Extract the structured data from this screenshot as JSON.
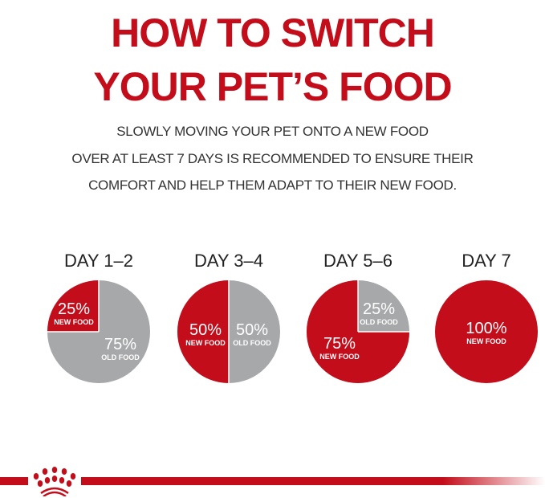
{
  "title": {
    "line1": "HOW TO SWITCH",
    "line2": "YOUR PET’S FOOD"
  },
  "subtitle": {
    "line1": "SLOWLY MOVING YOUR PET ONTO A NEW FOOD",
    "line2": "OVER AT LEAST 7 DAYS IS RECOMMENDED TO ENSURE THEIR",
    "line3": "COMFORT AND HELP THEM ADAPT TO THEIR NEW FOOD."
  },
  "colors": {
    "new_food": "#c30d1a",
    "old_food": "#a7a8aa"
  },
  "stages": [
    {
      "day": "DAY 1–2",
      "new_pct": 25,
      "new_label": "25%",
      "new_text": "NEW FOOD",
      "old_label": "75%",
      "old_text": "OLD FOOD"
    },
    {
      "day": "DAY 3–4",
      "new_pct": 50,
      "new_label": "50%",
      "new_text": "NEW FOOD",
      "old_label": "50%",
      "old_text": "OLD FOOD"
    },
    {
      "day": "DAY 5–6",
      "new_pct": 75,
      "new_label": "75%",
      "new_text": "NEW FOOD",
      "old_label": "25%",
      "old_text": "OLD FOOD"
    },
    {
      "day": "DAY 7",
      "new_pct": 100,
      "new_label": "100%",
      "new_text": "NEW FOOD"
    }
  ],
  "logo": {
    "icon": "crown-icon"
  }
}
